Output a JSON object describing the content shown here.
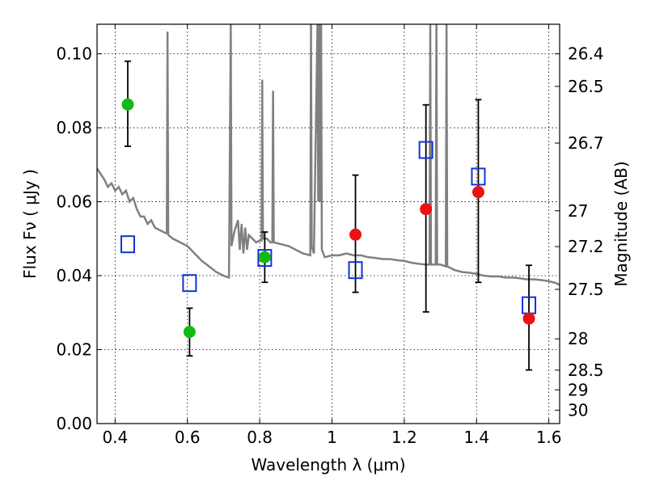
{
  "chart_data": {
    "type": "scatter",
    "xlabel": "Wavelength  λ (μm)",
    "ylabel_left": "Flux  Fν  ( μJy )",
    "ylabel_right": "Magnitude (AB)",
    "xlim": [
      0.35,
      1.63
    ],
    "ylim": [
      0.0,
      0.108
    ],
    "grid": true,
    "x_ticks": [
      0.4,
      0.6,
      0.8,
      1.0,
      1.2,
      1.4,
      1.6
    ],
    "x_tick_labels": [
      "0.4",
      "0.6",
      "0.8",
      "1",
      "1.2",
      "1.4",
      "1.6"
    ],
    "y_ticks": [
      0.0,
      0.02,
      0.04,
      0.06,
      0.08,
      0.1
    ],
    "y_tick_labels": [
      "0.00",
      "0.02",
      "0.04",
      "0.06",
      "0.08",
      "0.10"
    ],
    "right_ticks": [
      {
        "mag": 26.4,
        "label": "26.4"
      },
      {
        "mag": 26.5,
        "label": "26.5"
      },
      {
        "mag": 26.7,
        "label": "26.7"
      },
      {
        "mag": 27,
        "label": "27"
      },
      {
        "mag": 27.2,
        "label": "27.2"
      },
      {
        "mag": 27.5,
        "label": "27.5"
      },
      {
        "mag": 28,
        "label": "28"
      },
      {
        "mag": 28.5,
        "label": "28.5"
      },
      {
        "mag": 29,
        "label": "29"
      },
      {
        "mag": 30,
        "label": "30"
      }
    ],
    "series": [
      {
        "kind": "green-points",
        "color": "#11bb11",
        "points": [
          {
            "x": 0.435,
            "y": 0.0863,
            "yerr": [
              0.075,
              0.098
            ]
          },
          {
            "x": 0.606,
            "y": 0.0248,
            "yerr": [
              0.0183,
              0.0312
            ]
          },
          {
            "x": 0.814,
            "y": 0.045,
            "yerr": [
              0.0382,
              0.0518
            ]
          }
        ]
      },
      {
        "kind": "red-points",
        "color": "#ee1111",
        "points": [
          {
            "x": 1.065,
            "y": 0.0511,
            "yerr": [
              0.0355,
              0.0672
            ]
          },
          {
            "x": 1.26,
            "y": 0.058,
            "yerr": [
              0.0302,
              0.0862
            ]
          },
          {
            "x": 1.405,
            "y": 0.0626,
            "yerr": [
              0.0382,
              0.0876
            ]
          },
          {
            "x": 1.545,
            "y": 0.0284,
            "yerr": [
              0.0145,
              0.0428
            ]
          }
        ]
      },
      {
        "kind": "blue-squares",
        "color": "#1133dd",
        "points": [
          {
            "x": 0.435,
            "y": 0.0485
          },
          {
            "x": 0.606,
            "y": 0.038
          },
          {
            "x": 0.814,
            "y": 0.0448
          },
          {
            "x": 1.065,
            "y": 0.0415
          },
          {
            "x": 1.26,
            "y": 0.074
          },
          {
            "x": 1.405,
            "y": 0.0668
          },
          {
            "x": 1.545,
            "y": 0.032
          }
        ]
      },
      {
        "kind": "model-spectrum",
        "color": "#808080",
        "line": [
          [
            0.35,
            0.069
          ],
          [
            0.37,
            0.066
          ],
          [
            0.38,
            0.064
          ],
          [
            0.39,
            0.065
          ],
          [
            0.4,
            0.063
          ],
          [
            0.41,
            0.064
          ],
          [
            0.42,
            0.062
          ],
          [
            0.43,
            0.063
          ],
          [
            0.44,
            0.06
          ],
          [
            0.45,
            0.061
          ],
          [
            0.46,
            0.058
          ],
          [
            0.47,
            0.056
          ],
          [
            0.48,
            0.056
          ],
          [
            0.49,
            0.054
          ],
          [
            0.5,
            0.055
          ],
          [
            0.51,
            0.053
          ],
          [
            0.52,
            0.0525
          ],
          [
            0.53,
            0.052
          ],
          [
            0.54,
            0.0515
          ],
          [
            0.543,
            0.0515
          ],
          [
            0.545,
            0.106
          ],
          [
            0.547,
            0.051
          ],
          [
            0.56,
            0.05
          ],
          [
            0.58,
            0.049
          ],
          [
            0.6,
            0.048
          ],
          [
            0.62,
            0.046
          ],
          [
            0.64,
            0.044
          ],
          [
            0.66,
            0.0425
          ],
          [
            0.68,
            0.041
          ],
          [
            0.7,
            0.04
          ],
          [
            0.715,
            0.0395
          ],
          [
            0.72,
            0.108
          ],
          [
            0.722,
            0.048
          ],
          [
            0.73,
            0.052
          ],
          [
            0.74,
            0.055
          ],
          [
            0.745,
            0.047
          ],
          [
            0.75,
            0.054
          ],
          [
            0.755,
            0.046
          ],
          [
            0.76,
            0.053
          ],
          [
            0.765,
            0.047
          ],
          [
            0.77,
            0.051
          ],
          [
            0.78,
            0.05
          ],
          [
            0.79,
            0.049
          ],
          [
            0.8,
            0.0495
          ],
          [
            0.805,
            0.0495
          ],
          [
            0.807,
            0.093
          ],
          [
            0.809,
            0.05
          ],
          [
            0.82,
            0.05
          ],
          [
            0.83,
            0.049
          ],
          [
            0.835,
            0.049
          ],
          [
            0.837,
            0.09
          ],
          [
            0.839,
            0.049
          ],
          [
            0.86,
            0.0485
          ],
          [
            0.88,
            0.048
          ],
          [
            0.9,
            0.047
          ],
          [
            0.92,
            0.046
          ],
          [
            0.94,
            0.0455
          ],
          [
            0.942,
            0.108
          ],
          [
            0.944,
            0.048
          ],
          [
            0.95,
            0.046
          ],
          [
            0.96,
            0.108
          ],
          [
            0.962,
            0.06
          ],
          [
            0.965,
            0.108
          ],
          [
            0.967,
            0.06
          ],
          [
            0.97,
            0.108
          ],
          [
            0.972,
            0.047
          ],
          [
            0.98,
            0.045
          ],
          [
            1.0,
            0.0455
          ],
          [
            1.02,
            0.0455
          ],
          [
            1.04,
            0.046
          ],
          [
            1.06,
            0.0455
          ],
          [
            1.08,
            0.0455
          ],
          [
            1.1,
            0.045
          ],
          [
            1.12,
            0.0448
          ],
          [
            1.14,
            0.0445
          ],
          [
            1.16,
            0.0445
          ],
          [
            1.18,
            0.0442
          ],
          [
            1.2,
            0.044
          ],
          [
            1.22,
            0.0435
          ],
          [
            1.24,
            0.0432
          ],
          [
            1.26,
            0.043
          ],
          [
            1.27,
            0.043
          ],
          [
            1.272,
            0.108
          ],
          [
            1.274,
            0.043
          ],
          [
            1.28,
            0.043
          ],
          [
            1.287,
            0.043
          ],
          [
            1.289,
            0.108
          ],
          [
            1.291,
            0.043
          ],
          [
            1.3,
            0.043
          ],
          [
            1.315,
            0.0425
          ],
          [
            1.317,
            0.108
          ],
          [
            1.319,
            0.0425
          ],
          [
            1.34,
            0.0415
          ],
          [
            1.36,
            0.041
          ],
          [
            1.38,
            0.0408
          ],
          [
            1.4,
            0.0405
          ],
          [
            1.42,
            0.04
          ],
          [
            1.44,
            0.0398
          ],
          [
            1.46,
            0.0398
          ],
          [
            1.48,
            0.0395
          ],
          [
            1.5,
            0.0395
          ],
          [
            1.52,
            0.0393
          ],
          [
            1.54,
            0.039
          ],
          [
            1.56,
            0.039
          ],
          [
            1.58,
            0.0388
          ],
          [
            1.6,
            0.0385
          ],
          [
            1.62,
            0.038
          ],
          [
            1.63,
            0.0375
          ]
        ]
      }
    ]
  }
}
